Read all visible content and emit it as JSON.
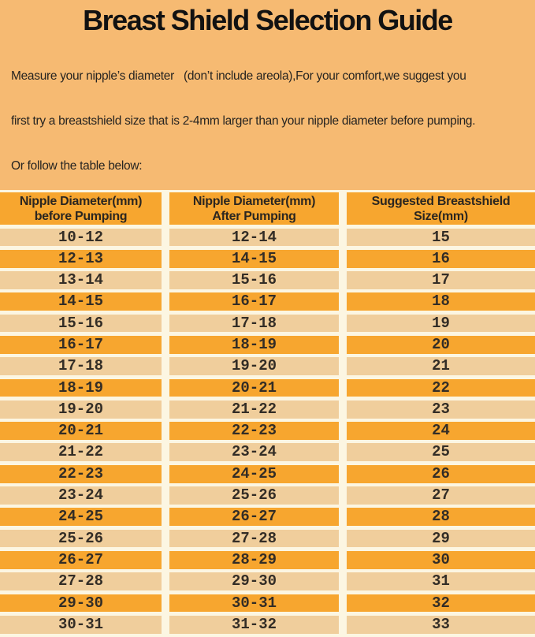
{
  "title": "Breast Shield Selection Guide",
  "intro": {
    "line1": "Measure your nipple’s diameter   (don’t include areola),For your comfort,we suggest you",
    "line2": "first try a breastshield size that is 2-4mm larger than your nipple diameter before pumping.",
    "line3": "Or follow the table below:"
  },
  "table": {
    "headers": [
      {
        "line1": "Nipple Diameter(mm)",
        "line2": "before Pumping"
      },
      {
        "line1": "Nipple Diameter(mm)",
        "line2": "After Pumping"
      },
      {
        "line1": "Suggested Breastshield",
        "line2": "Size(mm)"
      }
    ],
    "rows": [
      [
        "10-12",
        "12-14",
        "15"
      ],
      [
        "12-13",
        "14-15",
        "16"
      ],
      [
        "13-14",
        "15-16",
        "17"
      ],
      [
        "14-15",
        "16-17",
        "18"
      ],
      [
        "15-16",
        "17-18",
        "19"
      ],
      [
        "16-17",
        "18-19",
        "20"
      ],
      [
        "17-18",
        "19-20",
        "21"
      ],
      [
        "18-19",
        "20-21",
        "22"
      ],
      [
        "19-20",
        "21-22",
        "23"
      ],
      [
        "20-21",
        "22-23",
        "24"
      ],
      [
        "21-22",
        "23-24",
        "25"
      ],
      [
        "22-23",
        "24-25",
        "26"
      ],
      [
        "23-24",
        "25-26",
        "27"
      ],
      [
        "24-25",
        "26-27",
        "28"
      ],
      [
        "25-26",
        "27-28",
        "29"
      ],
      [
        "26-27",
        "28-29",
        "30"
      ],
      [
        "27-28",
        "29-30",
        "31"
      ],
      [
        "29-30",
        "30-31",
        "32"
      ],
      [
        "30-31",
        "31-32",
        "33"
      ]
    ]
  },
  "colors": {
    "background": "#F6BA72",
    "header_and_odd_rows": "#F7A62F",
    "even_rows": "#F0CE9C",
    "separator": "#FCF6E2",
    "text": "#221E1A"
  }
}
